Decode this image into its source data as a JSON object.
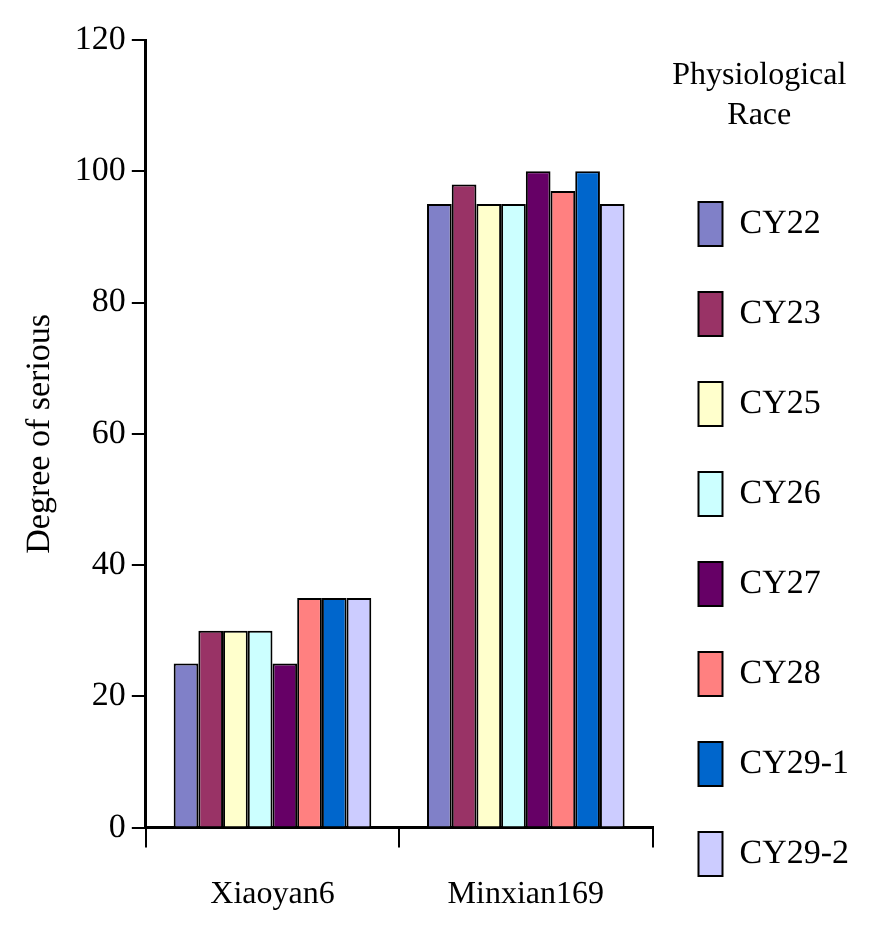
{
  "chart_data": {
    "type": "bar",
    "ylabel": "Degree of serious",
    "legend_title": "Physiological Race",
    "legend": "right",
    "categories": [
      "Xiaoyan6",
      "Minxian169"
    ],
    "ylim": [
      0,
      120
    ],
    "yticks": [
      0,
      20,
      40,
      60,
      80,
      100,
      120
    ],
    "series": [
      {
        "name": "CY22",
        "color": "#8080c8",
        "values": [
          25,
          95
        ]
      },
      {
        "name": "CY23",
        "color": "#993366",
        "values": [
          30,
          98
        ]
      },
      {
        "name": "CY25",
        "color": "#ffffcc",
        "values": [
          30,
          95
        ]
      },
      {
        "name": "CY26",
        "color": "#ccffff",
        "values": [
          30,
          95
        ]
      },
      {
        "name": "CY27",
        "color": "#660066",
        "values": [
          25,
          100
        ]
      },
      {
        "name": "CY28",
        "color": "#ff8080",
        "values": [
          35,
          97
        ]
      },
      {
        "name": "CY29-1",
        "color": "#0066cc",
        "values": [
          35,
          100
        ]
      },
      {
        "name": "CY29-2",
        "color": "#ccccff",
        "values": [
          35,
          95
        ]
      }
    ]
  }
}
